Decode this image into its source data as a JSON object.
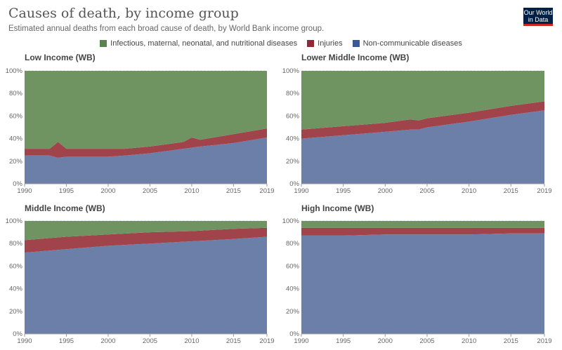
{
  "header": {
    "title": "Causes of death, by income group",
    "subtitle": "Estimated annual deaths from each broad cause of death, by World Bank income group.",
    "logo_line1": "Our World",
    "logo_line2": "in Data"
  },
  "legend": [
    {
      "label": "Infectious, maternal, neonatal, and nutritional diseases",
      "color": "#5b8450"
    },
    {
      "label": "Injuries",
      "color": "#8c2a35"
    },
    {
      "label": "Non-communicable diseases",
      "color": "#3b5999"
    }
  ],
  "colors": {
    "infectious": "#6f9462",
    "injuries": "#a0434b",
    "ncd": "#6b7fa8"
  },
  "chart_data": [
    {
      "type": "area",
      "title": "Low Income (WB)",
      "x": [
        1990,
        1992,
        1993,
        1994,
        1995,
        2000,
        2002,
        2005,
        2008,
        2009,
        2010,
        2011,
        2015,
        2019
      ],
      "series": [
        {
          "name": "Non-communicable diseases",
          "values": [
            25,
            25,
            25,
            23,
            24,
            24,
            25,
            27,
            30,
            31,
            32,
            33,
            36,
            41
          ]
        },
        {
          "name": "Injuries",
          "values": [
            6,
            6,
            6,
            14,
            7,
            7,
            6,
            6,
            6,
            6,
            9,
            6,
            8,
            8
          ]
        },
        {
          "name": "Infectious, maternal, neonatal, and nutritional diseases",
          "values": [
            69,
            69,
            69,
            63,
            69,
            69,
            69,
            67,
            64,
            63,
            59,
            61,
            56,
            51
          ]
        }
      ],
      "yticks": [
        "0%",
        "20%",
        "40%",
        "60%",
        "80%",
        "100%"
      ],
      "xticks": [
        1990,
        1995,
        2000,
        2005,
        2010,
        2015,
        2019
      ],
      "ylim": [
        0,
        100
      ]
    },
    {
      "type": "area",
      "title": "Lower Middle Income (WB)",
      "x": [
        1990,
        1995,
        2000,
        2003,
        2004,
        2005,
        2010,
        2015,
        2019
      ],
      "series": [
        {
          "name": "Non-communicable diseases",
          "values": [
            40,
            43,
            46,
            48,
            48,
            50,
            55,
            61,
            65
          ]
        },
        {
          "name": "Injuries",
          "values": [
            8,
            8,
            8,
            9,
            8,
            8,
            8,
            8,
            8
          ]
        },
        {
          "name": "Infectious, maternal, neonatal, and nutritional diseases",
          "values": [
            52,
            49,
            46,
            43,
            44,
            42,
            37,
            31,
            27
          ]
        }
      ],
      "yticks": [
        "0%",
        "20%",
        "40%",
        "60%",
        "80%",
        "100%"
      ],
      "xticks": [
        1990,
        1995,
        2000,
        2005,
        2010,
        2015,
        2019
      ],
      "ylim": [
        0,
        100
      ]
    },
    {
      "type": "area",
      "title": "Middle Income (WB)",
      "x": [
        1990,
        1995,
        2000,
        2005,
        2010,
        2015,
        2019
      ],
      "series": [
        {
          "name": "Non-communicable diseases",
          "values": [
            72,
            75,
            78,
            80,
            82,
            84,
            86
          ]
        },
        {
          "name": "Injuries",
          "values": [
            11,
            11,
            10,
            10,
            9,
            9,
            8
          ]
        },
        {
          "name": "Infectious, maternal, neonatal, and nutritional diseases",
          "values": [
            17,
            14,
            12,
            10,
            9,
            7,
            6
          ]
        }
      ],
      "yticks": [
        "0%",
        "20%",
        "40%",
        "60%",
        "80%",
        "100%"
      ],
      "xticks": [
        1990,
        1995,
        2000,
        2005,
        2010,
        2015,
        2019
      ],
      "ylim": [
        0,
        100
      ]
    },
    {
      "type": "area",
      "title": "High Income (WB)",
      "x": [
        1990,
        1995,
        2000,
        2005,
        2010,
        2015,
        2019
      ],
      "series": [
        {
          "name": "Non-communicable diseases",
          "values": [
            87,
            87,
            88,
            88,
            88,
            89,
            89
          ]
        },
        {
          "name": "Injuries",
          "values": [
            7,
            7,
            6,
            6,
            6,
            5,
            5
          ]
        },
        {
          "name": "Infectious, maternal, neonatal, and nutritional diseases",
          "values": [
            6,
            6,
            6,
            6,
            6,
            6,
            6
          ]
        }
      ],
      "yticks": [
        "0%",
        "20%",
        "40%",
        "60%",
        "80%",
        "100%"
      ],
      "xticks": [
        1990,
        1995,
        2000,
        2005,
        2010,
        2015,
        2019
      ],
      "ylim": [
        0,
        100
      ]
    }
  ]
}
